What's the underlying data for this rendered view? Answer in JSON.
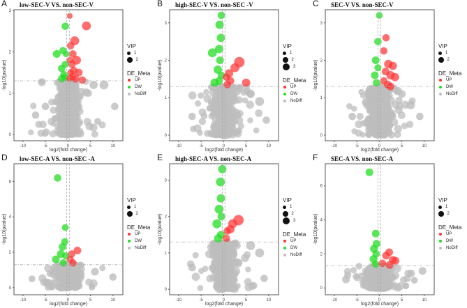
{
  "chart_data": [
    {
      "letter": "A",
      "title": "low-SEC-V VS. non-SEC-V",
      "type": "scatter",
      "xlabel": "log2(fold change)",
      "ylabel": "-log10(pvalue)",
      "xlim": [
        -12,
        12.2
      ],
      "ylim": [
        -0.15,
        3.02
      ],
      "xticks": [
        -10,
        -5,
        0,
        5,
        10
      ],
      "yticks": [
        0,
        1,
        2,
        3
      ],
      "p_threshold": 1.3,
      "fc_threshold": [
        -0.3,
        0.3
      ],
      "vip_levels": [
        "1",
        "2"
      ],
      "up": [
        [
          0.4,
          2.87,
          1
        ],
        [
          4.1,
          2.63,
          2
        ],
        [
          1.5,
          2.27,
          2
        ],
        [
          0.6,
          2.15,
          1.5
        ],
        [
          1.1,
          1.95,
          1.5
        ],
        [
          0.4,
          1.8,
          1.2
        ],
        [
          1.9,
          1.8,
          2
        ],
        [
          0.9,
          1.7,
          1.5
        ],
        [
          1.3,
          1.55,
          1.5
        ],
        [
          2.4,
          1.5,
          1.6
        ],
        [
          0.6,
          1.5,
          1.3
        ],
        [
          1.0,
          1.4,
          1.5
        ],
        [
          1.7,
          1.35,
          1.6
        ],
        [
          3.2,
          1.32,
          1.5
        ],
        [
          0.4,
          1.36,
          1.4
        ]
      ],
      "dw": [
        [
          -0.6,
          2.62,
          1.5
        ],
        [
          -2.5,
          1.95,
          1.6
        ],
        [
          -1.1,
          2.03,
          1.5
        ],
        [
          -0.4,
          1.95,
          1.2
        ],
        [
          -1.4,
          1.6,
          1.5
        ],
        [
          -0.6,
          1.7,
          1.4
        ],
        [
          -0.9,
          1.45,
          1.5
        ],
        [
          -1.4,
          1.35,
          1.5
        ],
        [
          -0.7,
          1.38,
          1.4
        ]
      ],
      "nodiff_outliers": [
        [
          8,
          1.2,
          2
        ],
        [
          10.4,
          0.68,
          1.5
        ],
        [
          -7.2,
          0.47,
          1.5
        ],
        [
          5.7,
          1.2,
          1.8
        ],
        [
          -5,
          0.68,
          1.5
        ],
        [
          6.6,
          0.32,
          1.3
        ]
      ],
      "nodiff_count": 380
    },
    {
      "letter": "B",
      "title": "high-SEC-V VS. non-SEC -V",
      "type": "scatter",
      "xlabel": "log2(fold change)",
      "ylabel": "-log10(pvalue)",
      "xlim": [
        -12,
        12.2
      ],
      "ylim": [
        -0.15,
        3.35
      ],
      "xticks": [
        -10,
        -5,
        0,
        5,
        10
      ],
      "yticks": [
        0,
        1,
        2,
        3
      ],
      "p_threshold": 1.3,
      "fc_threshold": [
        -0.3,
        0.3
      ],
      "vip_levels": [
        "1",
        "2",
        "3"
      ],
      "up": [
        [
          3.5,
          1.95,
          2.5
        ],
        [
          2.5,
          1.8,
          2
        ],
        [
          1.2,
          1.65,
          1.8
        ],
        [
          0.6,
          1.55,
          1.5
        ],
        [
          5,
          1.4,
          1.8
        ],
        [
          1.5,
          1.45,
          1.6
        ],
        [
          0.8,
          1.35,
          1.5
        ]
      ],
      "dw": [
        [
          -0.5,
          3.2,
          1.5
        ],
        [
          -0.9,
          2.95,
          1.8
        ],
        [
          -0.6,
          2.6,
          1.8
        ],
        [
          -2.5,
          2.2,
          2
        ],
        [
          -1,
          2.3,
          1.8
        ],
        [
          -0.8,
          2.0,
          1.6
        ],
        [
          -1.3,
          1.75,
          1.8
        ],
        [
          -0.5,
          1.6,
          1.5
        ],
        [
          -1.0,
          1.45,
          1.6
        ],
        [
          -2,
          1.4,
          1.8
        ]
      ],
      "nodiff_outliers": [
        [
          8,
          0.9,
          2
        ],
        [
          -7,
          0.5,
          1.5
        ],
        [
          6,
          1.1,
          1.8
        ],
        [
          9.5,
          0.4,
          1.5
        ]
      ],
      "nodiff_count": 380
    },
    {
      "letter": "C",
      "title": "SEC-V VS. non-SEC-V",
      "type": "scatter",
      "xlabel": "log2(fold change)",
      "ylabel": "-log10(pvalue)",
      "xlim": [
        -12,
        12.2
      ],
      "ylim": [
        -0.15,
        3.35
      ],
      "xticks": [
        -10,
        -5,
        0,
        5,
        10
      ],
      "yticks": [
        0,
        1,
        2,
        3
      ],
      "p_threshold": 1.3,
      "fc_threshold": [
        -0.3,
        0.3
      ],
      "vip_levels": [
        "1",
        "2"
      ],
      "up": [
        [
          1.5,
          2.6,
          1.5
        ],
        [
          1.0,
          2.25,
          1.5
        ],
        [
          2,
          1.9,
          1.8
        ],
        [
          3,
          1.85,
          1.8
        ],
        [
          1.4,
          1.7,
          1.6
        ],
        [
          2.5,
          1.6,
          1.8
        ],
        [
          3.5,
          1.55,
          1.8
        ],
        [
          1.0,
          1.45,
          1.5
        ],
        [
          1.9,
          1.35,
          1.6
        ],
        [
          2.5,
          1.3,
          1.6
        ]
      ],
      "dw": [
        [
          0.0,
          3.2,
          1.3
        ],
        [
          -0.3,
          2.5,
          1.5
        ],
        [
          -0.8,
          2.0,
          1.6
        ],
        [
          -1,
          1.6,
          1.6
        ],
        [
          -0.6,
          1.4,
          1.5
        ],
        [
          -0.3,
          1.8,
          1.4
        ]
      ],
      "nodiff_outliers": [
        [
          7,
          0.8,
          1.8
        ],
        [
          -6,
          0.5,
          1.5
        ],
        [
          5,
          1.1,
          1.6
        ],
        [
          9,
          0.5,
          1.5
        ]
      ],
      "nodiff_count": 380
    },
    {
      "letter": "D",
      "title": "low-SEC-A VS. non-SEC -A",
      "type": "scatter",
      "xlabel": "log2(fold change)",
      "ylabel": "-log10(pvalue)",
      "xlim": [
        -12,
        12.2
      ],
      "ylim": [
        -0.4,
        7.0
      ],
      "xticks": [
        -10,
        -5,
        0,
        5,
        10
      ],
      "yticks": [
        0,
        2,
        4,
        6
      ],
      "p_threshold": 1.3,
      "fc_threshold": [
        -0.3,
        0.3
      ],
      "vip_levels": [
        "1",
        "2"
      ],
      "up": [
        [
          2.1,
          2.1,
          1.6
        ],
        [
          0.8,
          1.9,
          1.5
        ],
        [
          0.5,
          1.6,
          1.4
        ],
        [
          1.1,
          1.4,
          1.5
        ]
      ],
      "dw": [
        [
          -2.3,
          6.2,
          1.5
        ],
        [
          -0.6,
          3.4,
          1.3
        ],
        [
          -1.2,
          2.3,
          1.6
        ],
        [
          -0.7,
          2.6,
          1.4
        ],
        [
          -1.6,
          1.9,
          1.6
        ],
        [
          -0.5,
          1.8,
          1.4
        ],
        [
          -2.7,
          1.6,
          1.6
        ],
        [
          -1,
          1.4,
          1.5
        ]
      ],
      "nodiff_outliers": [
        [
          10,
          0.6,
          1.5
        ],
        [
          -8,
          0.5,
          1.3
        ],
        [
          6,
          0.9,
          1.6
        ],
        [
          -4,
          0.8,
          1.3
        ]
      ],
      "nodiff_count": 380
    },
    {
      "letter": "E",
      "title": "high-SEC-A VS. non-SEC-A",
      "type": "scatter",
      "xlabel": "log2(fold change)",
      "ylabel": "-log10(pvalue)",
      "xlim": [
        -12,
        12.2
      ],
      "ylim": [
        -0.15,
        3.45
      ],
      "xticks": [
        -10,
        -5,
        0,
        5,
        10
      ],
      "yticks": [
        0,
        1,
        2,
        3
      ],
      "p_threshold": 1.3,
      "fc_threshold": [
        -0.3,
        0.3
      ],
      "vip_levels": [
        "1",
        "2",
        "3"
      ],
      "up": [
        [
          3.3,
          1.9,
          2.5
        ],
        [
          2,
          1.8,
          2
        ],
        [
          1.5,
          1.65,
          1.8
        ],
        [
          0.8,
          1.6,
          1.5
        ],
        [
          0.6,
          1.4,
          1.5
        ]
      ],
      "dw": [
        [
          -0.3,
          3.3,
          1.8
        ],
        [
          -0.7,
          2.95,
          2
        ],
        [
          -0.6,
          2.5,
          1.8
        ],
        [
          -1,
          2.2,
          2
        ],
        [
          -0.5,
          2.0,
          1.6
        ],
        [
          -1.5,
          1.8,
          2
        ],
        [
          -0.6,
          1.5,
          1.6
        ],
        [
          -1.2,
          1.4,
          1.8
        ]
      ],
      "nodiff_outliers": [
        [
          8,
          1.0,
          2
        ],
        [
          -7,
          0.6,
          1.6
        ],
        [
          6,
          1.2,
          2
        ],
        [
          9,
          0.3,
          1.5
        ]
      ],
      "nodiff_count": 380
    },
    {
      "letter": "F",
      "title": "SEC-A VS. non-SEC-A",
      "type": "scatter",
      "xlabel": "log2(fold change)",
      "ylabel": "-log10(pvalue)",
      "xlim": [
        -12,
        12.2
      ],
      "ylim": [
        -0.4,
        7.3
      ],
      "xticks": [
        -10,
        -5,
        0,
        5,
        10
      ],
      "yticks": [
        0,
        2,
        4,
        6
      ],
      "p_threshold": 1.3,
      "fc_threshold": [
        -0.3,
        0.3
      ],
      "vip_levels": [
        "1",
        "2"
      ],
      "up": [
        [
          2.2,
          2.1,
          1.6
        ],
        [
          1.5,
          1.9,
          1.6
        ],
        [
          3.0,
          1.65,
          1.6
        ],
        [
          3.6,
          1.6,
          1.6
        ],
        [
          0.7,
          1.45,
          1.5
        ],
        [
          2.3,
          1.35,
          1.6
        ]
      ],
      "dw": [
        [
          -2.2,
          6.8,
          1.6
        ],
        [
          -0.8,
          3.2,
          1.6
        ],
        [
          -0.6,
          2.6,
          1.6
        ],
        [
          -1.2,
          2.3,
          1.6
        ],
        [
          -0.7,
          2.0,
          1.5
        ],
        [
          -1.3,
          1.7,
          1.6
        ],
        [
          -0.8,
          1.4,
          1.5
        ]
      ],
      "nodiff_outliers": [
        [
          9.6,
          1.0,
          1.6
        ],
        [
          -7.4,
          0.5,
          1.6
        ],
        [
          7.1,
          0.85,
          1.5
        ],
        [
          7.8,
          0.45,
          1.3
        ],
        [
          -4,
          0.7,
          1.3
        ]
      ],
      "nodiff_count": 380
    }
  ],
  "legend": {
    "vip_title": "VIP",
    "de_title": "DE_Meta",
    "up": "UP",
    "dw": "DW",
    "nodiff": "NoDiff"
  },
  "colors": {
    "up": "#ff3030",
    "dw": "#22dd22",
    "nodiff": "#bdbdbd",
    "threshold": "#aaaaaa"
  }
}
